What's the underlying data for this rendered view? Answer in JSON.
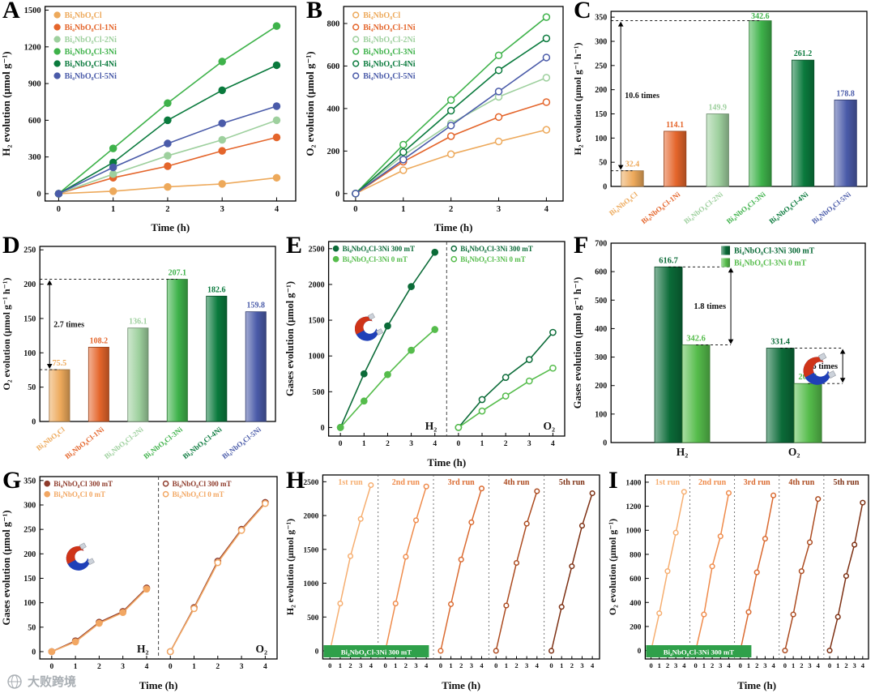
{
  "watermark": {
    "text": "大败跨境"
  },
  "chart_data": [
    {
      "id": "A",
      "letter": "A",
      "type": "line",
      "xlabel": "Time (h)",
      "ylabel": "H₂ evolution (μmol g⁻¹)",
      "x": [
        0,
        1,
        2,
        3,
        4
      ],
      "xlim": [
        -0.25,
        4.35
      ],
      "ylim": [
        -60,
        1530
      ],
      "yticks": [
        0,
        300,
        600,
        900,
        1200,
        1500
      ],
      "series": [
        {
          "name": "Bi₄NbO₈Cl",
          "color": "#EDA95B",
          "open": false,
          "values": [
            0,
            20,
            55,
            80,
            130
          ]
        },
        {
          "name": "Bi₄NbO₈Cl-1Ni",
          "color": "#E4652B",
          "open": false,
          "values": [
            0,
            130,
            225,
            350,
            460
          ]
        },
        {
          "name": "Bi₄NbO₈Cl-2Ni",
          "color": "#9ED09E",
          "open": false,
          "values": [
            0,
            160,
            310,
            440,
            600
          ]
        },
        {
          "name": "Bi₄NbO₈Cl-3Ni",
          "color": "#3EB24A",
          "open": false,
          "values": [
            0,
            370,
            740,
            1080,
            1370
          ]
        },
        {
          "name": "Bi₄NbO₈Cl-4Ni",
          "color": "#0A7A3D",
          "open": false,
          "values": [
            0,
            255,
            600,
            845,
            1050
          ]
        },
        {
          "name": "Bi₄NbO₈Cl-5Ni",
          "color": "#4A5BA9",
          "open": false,
          "values": [
            0,
            215,
            410,
            575,
            715
          ]
        }
      ]
    },
    {
      "id": "B",
      "letter": "B",
      "type": "line",
      "xlabel": "Time (h)",
      "ylabel": "O₂ evolution (μmol g⁻¹)",
      "x": [
        0,
        1,
        2,
        3,
        4
      ],
      "xlim": [
        -0.25,
        4.35
      ],
      "ylim": [
        -35,
        880
      ],
      "yticks": [
        0,
        200,
        400,
        600,
        800
      ],
      "series": [
        {
          "name": "Bi₄NbO₈Cl",
          "color": "#EDA95B",
          "open": true,
          "values": [
            0,
            110,
            185,
            245,
            300
          ]
        },
        {
          "name": "Bi₄NbO₈Cl-1Ni",
          "color": "#E4652B",
          "open": true,
          "values": [
            0,
            150,
            270,
            360,
            430
          ]
        },
        {
          "name": "Bi₄NbO₈Cl-2Ni",
          "color": "#9ED09E",
          "open": true,
          "values": [
            0,
            180,
            330,
            455,
            545
          ]
        },
        {
          "name": "Bi₄NbO₈Cl-3Ni",
          "color": "#3EB24A",
          "open": true,
          "values": [
            0,
            230,
            440,
            650,
            830
          ]
        },
        {
          "name": "Bi₄NbO₈Cl-4Ni",
          "color": "#0A7A3D",
          "open": true,
          "values": [
            0,
            195,
            390,
            580,
            730
          ]
        },
        {
          "name": "Bi₄NbO₈Cl-5Ni",
          "color": "#4A5BA9",
          "open": true,
          "values": [
            0,
            160,
            320,
            480,
            640
          ]
        }
      ]
    },
    {
      "id": "C",
      "letter": "C",
      "type": "bar",
      "ylabel": "H₂ evolution (μmol g⁻¹ h⁻¹)",
      "ylim": [
        0,
        362
      ],
      "yticks": [
        0,
        50,
        100,
        150,
        200,
        250,
        300,
        350
      ],
      "categories": [
        "Bi₄NbO₈Cl",
        "Bi₄NbO₈Cl-1Ni",
        "Bi₄NbO₈Cl-2Ni",
        "Bi₄NbO₈Cl-3Ni",
        "Bi₄NbO₈Cl-4Ni",
        "Bi₄NbO₈Cl-5Ni"
      ],
      "colors": [
        "#EDA95B",
        "#E4652B",
        "#9ED09E",
        "#3EB24A",
        "#0A7A3D",
        "#4A5BA9"
      ],
      "values": [
        32.4,
        114.1,
        149.9,
        342.6,
        261.2,
        178.8
      ],
      "annotation": {
        "text": "10.6 times",
        "from": 32.4,
        "to": 342.6,
        "to_index": 3
      }
    },
    {
      "id": "D",
      "letter": "D",
      "type": "bar",
      "ylabel": "O₂ evolution (μmol g⁻¹ h⁻¹)",
      "ylim": [
        0,
        255
      ],
      "yticks": [
        0,
        50,
        100,
        150,
        200,
        250
      ],
      "categories": [
        "Bi₄NbO₈Cl",
        "Bi₄NbO₈Cl-1Ni",
        "Bi₄NbO₈Cl-2Ni",
        "Bi₄NbO₈Cl-3Ni",
        "Bi₄NbO₈Cl-4Ni",
        "Bi₄NbO₈Cl-5Ni"
      ],
      "colors": [
        "#EDA95B",
        "#E4652B",
        "#9ED09E",
        "#3EB24A",
        "#0A7A3D",
        "#4A5BA9"
      ],
      "values": [
        75.5,
        108.2,
        136.1,
        207.1,
        182.6,
        159.8
      ],
      "annotation": {
        "text": "2.7 times",
        "from": 75.5,
        "to": 207.1,
        "to_index": 3
      }
    },
    {
      "id": "E",
      "letter": "E",
      "type": "line",
      "subtype": "split",
      "xlabel": "Time (h)",
      "ylabel": "Gases evolution (μmol g⁻¹)",
      "x": [
        0,
        1,
        2,
        3,
        4
      ],
      "ylim": [
        -120,
        2600
      ],
      "yticks": [
        0,
        500,
        1000,
        1500,
        2000,
        2500
      ],
      "groups": [
        {
          "label": "H₂",
          "magnet": true,
          "series": [
            {
              "name": "Bi₄NbO₈Cl-3Ni 300 mT",
              "color": "#0B6B38",
              "open": false,
              "values": [
                0,
                750,
                1420,
                1970,
                2450
              ]
            },
            {
              "name": "Bi₄NbO₈Cl-3Ni 0 mT",
              "color": "#55BC4B",
              "open": false,
              "values": [
                0,
                370,
                740,
                1080,
                1370
              ]
            }
          ]
        },
        {
          "label": "O₂",
          "magnet": false,
          "series": [
            {
              "name": "Bi₄NbO₈Cl-3Ni 300 mT",
              "color": "#0B6B38",
              "open": true,
              "values": [
                0,
                390,
                700,
                950,
                1330
              ]
            },
            {
              "name": "Bi₄NbO₈Cl-3Ni 0 mT",
              "color": "#55BC4B",
              "open": true,
              "values": [
                0,
                230,
                440,
                650,
                830
              ]
            }
          ]
        }
      ]
    },
    {
      "id": "F",
      "letter": "F",
      "type": "bar",
      "subtype": "grouped",
      "ylabel": "Gases evolution (μmol g⁻¹ h⁻¹)",
      "ylim": [
        0,
        700
      ],
      "yticks": [
        0,
        100,
        200,
        300,
        400,
        500,
        600,
        700
      ],
      "bar_colors": [
        "#0B6B38",
        "#55BC4B"
      ],
      "legend": [
        {
          "name": "Bi₄NbO₈Cl-3Ni 300 mT",
          "color": "#0B6B38"
        },
        {
          "name": "Bi₄NbO₈Cl-3Ni 0 mT",
          "color": "#55BC4B"
        }
      ],
      "groups": [
        {
          "label": "H₂",
          "values": [
            616.7,
            342.6
          ],
          "annotation": "1.8 times"
        },
        {
          "label": "O₂",
          "values": [
            331.4,
            207.1
          ],
          "annotation": "1.6 times"
        }
      ]
    },
    {
      "id": "G",
      "letter": "G",
      "type": "line",
      "subtype": "split",
      "xlabel": "Time (h)",
      "ylabel": "Gases evolution (μmol g⁻¹)",
      "x": [
        0,
        1,
        2,
        3,
        4
      ],
      "ylim": [
        -15,
        358
      ],
      "yticks": [
        0,
        50,
        100,
        150,
        200,
        250,
        300,
        350
      ],
      "groups": [
        {
          "label": "H₂",
          "magnet": true,
          "series": [
            {
              "name": "Bi₄NbO₈Cl 300 mT",
              "color": "#8E3B2B",
              "open": false,
              "values": [
                0,
                22,
                60,
                82,
                130
              ]
            },
            {
              "name": "Bi₄NbO₈Cl 0 mT",
              "color": "#F2A763",
              "open": false,
              "values": [
                0,
                20,
                58,
                80,
                128
              ]
            }
          ]
        },
        {
          "label": "O₂",
          "magnet": false,
          "series": [
            {
              "name": "Bi₄NbO₈Cl 300 mT",
              "color": "#8E3B2B",
              "open": true,
              "values": [
                0,
                90,
                185,
                250,
                305
              ]
            },
            {
              "name": "Bi₄NbO₈Cl 0 mT",
              "color": "#F2A763",
              "open": true,
              "values": [
                0,
                88,
                182,
                248,
                303
              ]
            }
          ]
        }
      ]
    },
    {
      "id": "H",
      "letter": "H",
      "type": "line",
      "subtype": "cycles",
      "xlabel": "Time (h)",
      "ylabel": "H₂ evolution (μmol g⁻¹)",
      "ylim": [
        -120,
        2600
      ],
      "yticks": [
        0,
        500,
        1000,
        1500,
        2000,
        2500
      ],
      "badge": {
        "text": "Bi₄NbO₈Cl-3Ni 300 mT",
        "color": "#2FA04A"
      },
      "runs": [
        {
          "label": "1st run",
          "color": "#F6AE70",
          "values": [
            0,
            700,
            1400,
            1950,
            2450
          ]
        },
        {
          "label": "2nd run",
          "color": "#EF8B4B",
          "values": [
            0,
            700,
            1390,
            1930,
            2430
          ]
        },
        {
          "label": "3rd run",
          "color": "#DA6A30",
          "values": [
            0,
            690,
            1350,
            1900,
            2400
          ]
        },
        {
          "label": "4th run",
          "color": "#AC4B20",
          "values": [
            0,
            670,
            1300,
            1880,
            2360
          ]
        },
        {
          "label": "5th run",
          "color": "#7D3013",
          "values": [
            0,
            650,
            1250,
            1850,
            2330
          ]
        }
      ]
    },
    {
      "id": "I",
      "letter": "I",
      "type": "line",
      "subtype": "cycles",
      "xlabel": "Time (h)",
      "ylabel": "O₂ evolution (μmol g⁻¹)",
      "ylim": [
        -70,
        1460
      ],
      "yticks": [
        0,
        200,
        400,
        600,
        800,
        1000,
        1200,
        1400
      ],
      "badge": {
        "text": "Bi₄NbO₈Cl-3Ni 300 mT",
        "color": "#2FA04A"
      },
      "runs": [
        {
          "label": "1st run",
          "color": "#F6AE70",
          "values": [
            0,
            310,
            660,
            980,
            1320
          ]
        },
        {
          "label": "2nd run",
          "color": "#EF8B4B",
          "values": [
            0,
            300,
            700,
            950,
            1310
          ]
        },
        {
          "label": "3rd run",
          "color": "#DA6A30",
          "values": [
            0,
            320,
            650,
            930,
            1290
          ]
        },
        {
          "label": "4th run",
          "color": "#AC4B20",
          "values": [
            0,
            300,
            660,
            900,
            1260
          ]
        },
        {
          "label": "5th run",
          "color": "#7D3013",
          "values": [
            0,
            280,
            620,
            880,
            1230
          ]
        }
      ]
    }
  ]
}
